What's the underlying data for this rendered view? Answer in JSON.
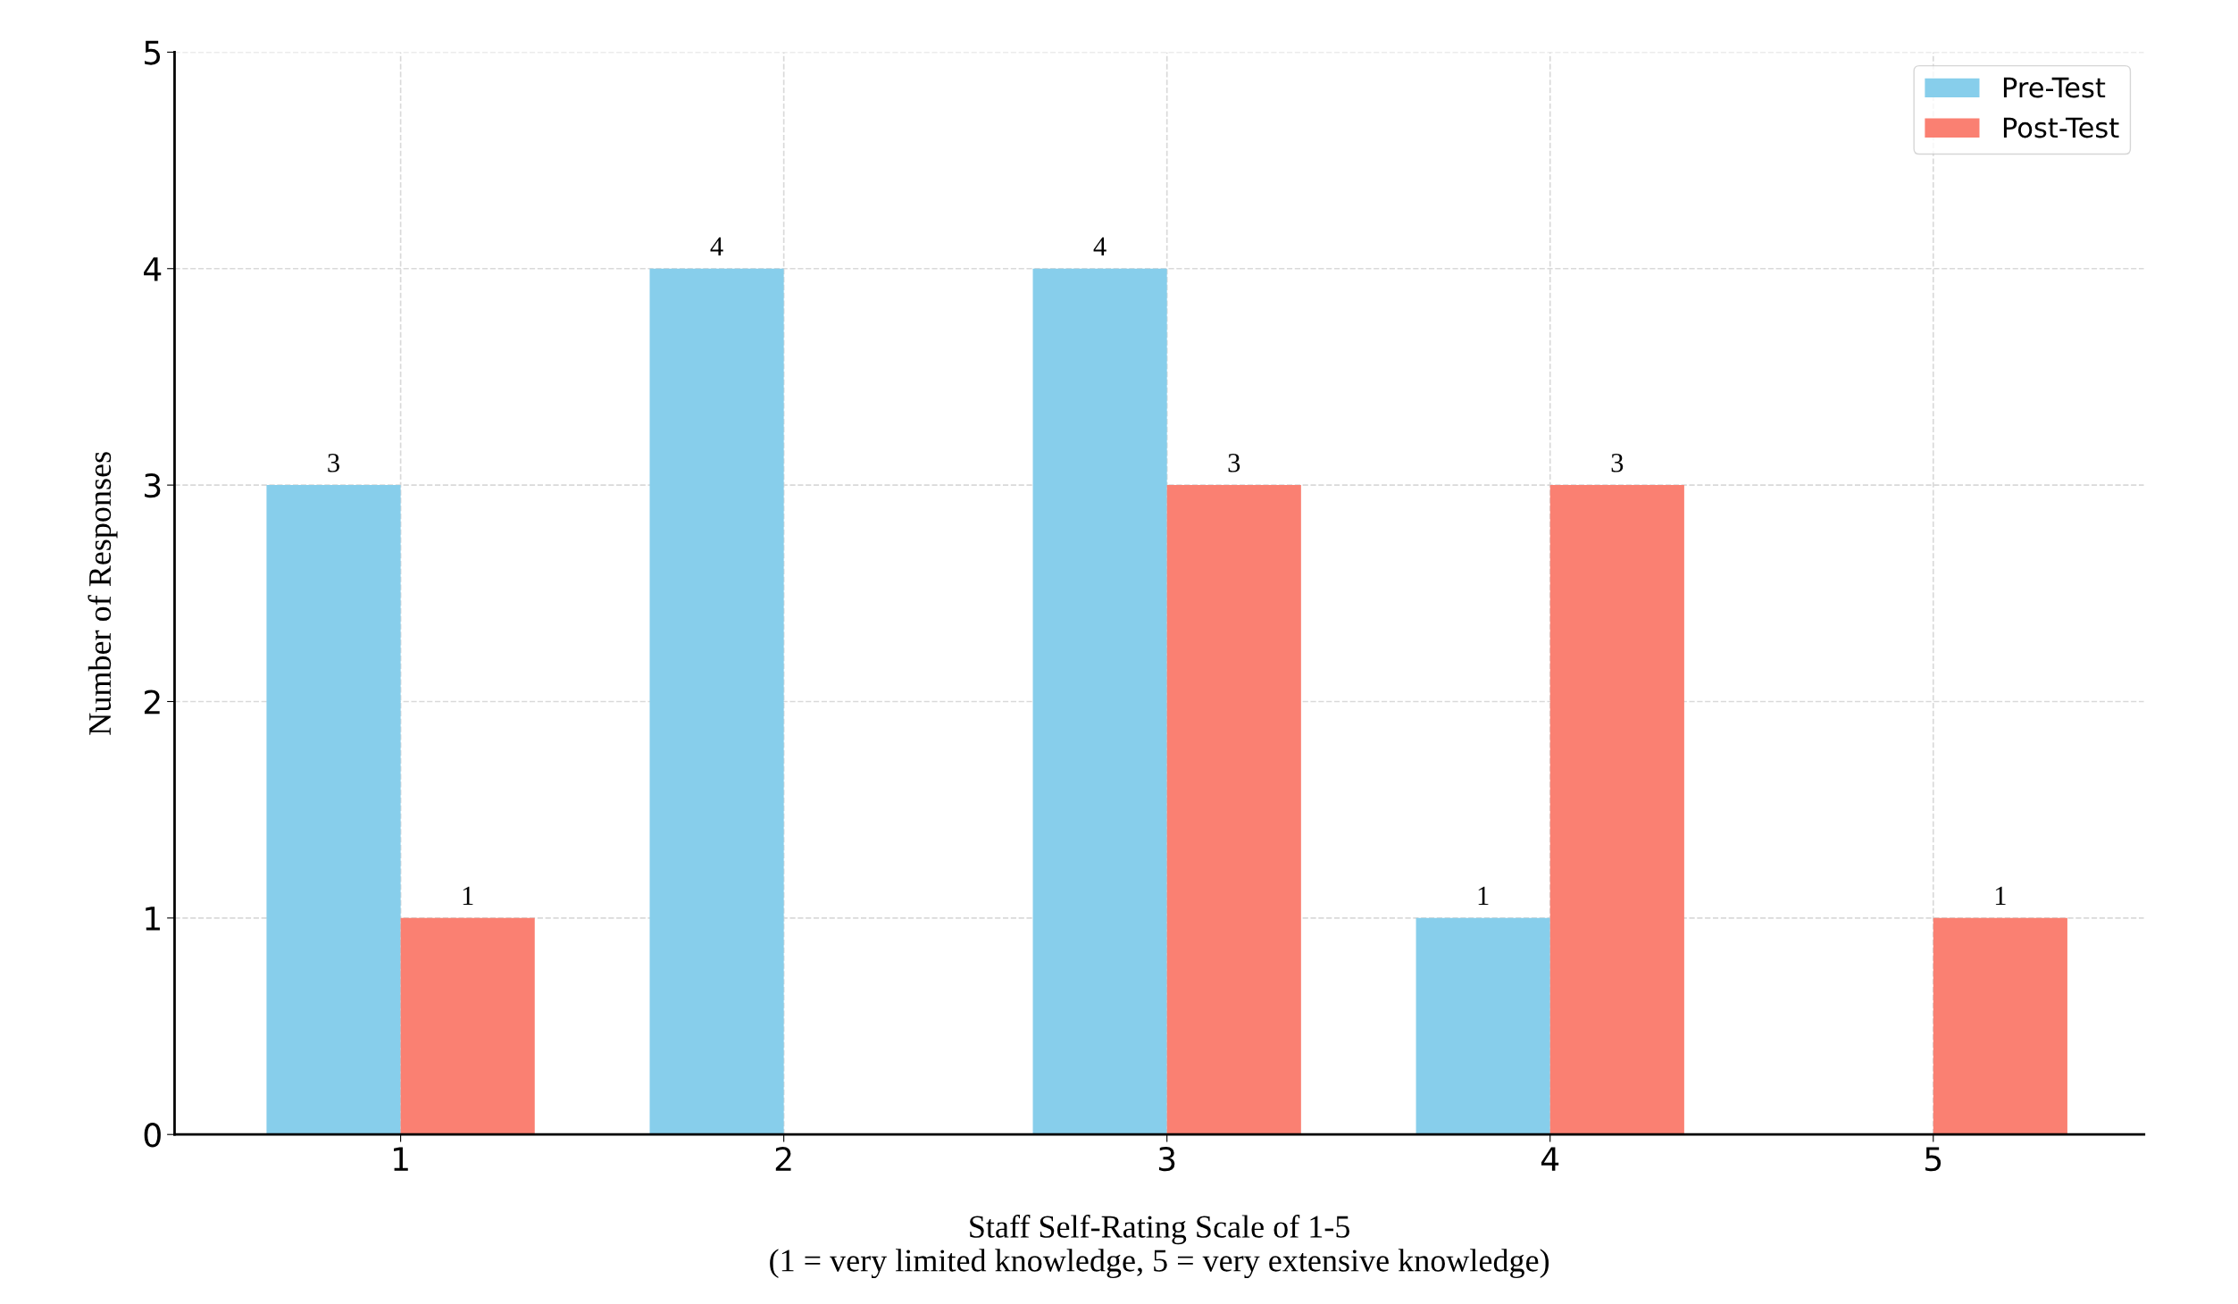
{
  "chart_data": {
    "type": "bar",
    "xlabel": "Staff Self-Rating Scale of 1-5\n(1 = very limited knowledge, 5 = very extensive knowledge)",
    "ylabel": "Number of Responses",
    "categories": [
      "1",
      "2",
      "3",
      "4",
      "5"
    ],
    "series": [
      {
        "name": "Pre-Test",
        "color": "#87ceeb",
        "values": [
          3,
          4,
          4,
          1,
          0
        ],
        "value_labels": [
          "3",
          "4",
          "4",
          "1",
          null
        ]
      },
      {
        "name": "Post-Test",
        "color": "#fa8072",
        "values": [
          1,
          0,
          3,
          3,
          1
        ],
        "value_labels": [
          "1",
          null,
          "3",
          "3",
          "1"
        ]
      }
    ],
    "ylim": [
      0,
      5
    ],
    "yticks": [
      0,
      1,
      2,
      3,
      4,
      5
    ],
    "grid": true,
    "legend": "top right"
  }
}
